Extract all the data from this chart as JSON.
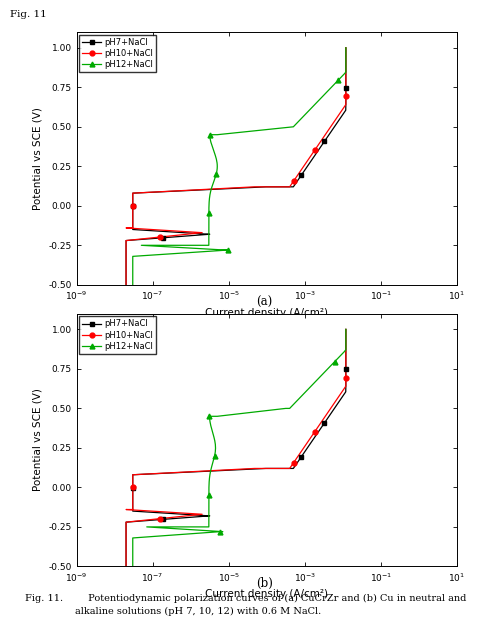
{
  "fig_label": "Fig. 11",
  "legend_labels": [
    "pH7+NaCl",
    "pH10+NaCl",
    "pH12+NaCl"
  ],
  "xlabel": "Current density (A/cm²)",
  "ylabel": "Potential vs SCE (V)",
  "subplot_a_label": "(a)",
  "subplot_b_label": "(b)",
  "caption_line1": "Fig. 11.        Potentiodynamic polarization curves of (a) CuCrZr and (b) Cu in neutral and",
  "caption_line2": "                alkaline solutions (pH 7, 10, 12) with 0.6 M NaCl.",
  "xlim": [
    1e-09,
    10.0
  ],
  "ylim": [
    -0.5,
    1.1
  ],
  "yticks": [
    -0.5,
    -0.25,
    0.0,
    0.25,
    0.5,
    0.75,
    1.0
  ],
  "colors": [
    "black",
    "red",
    "#00aa00"
  ],
  "markers": [
    "s",
    "o",
    "^"
  ],
  "lw": 0.9,
  "ms": 3.5
}
